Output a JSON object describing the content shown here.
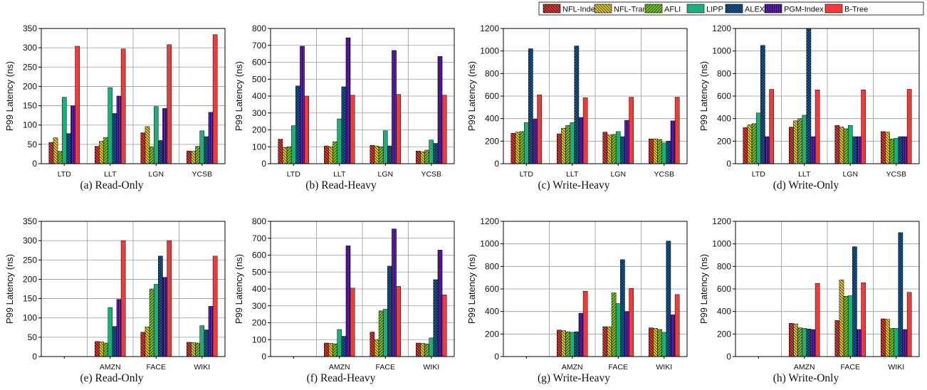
{
  "legend": [
    "NFL-Index",
    "NFL-Trans",
    "AFLI",
    "LIPP",
    "ALEX",
    "PGM-Index",
    "B-Tree"
  ],
  "series_style": [
    {
      "name": "NFL-Index",
      "color": "#e8332f",
      "pattern": "diag-back"
    },
    {
      "name": "NFL-Trans",
      "color": "#e6d21a",
      "pattern": "diag-back"
    },
    {
      "name": "AFLI",
      "color": "#7cc23a",
      "pattern": "diag-fwd"
    },
    {
      "name": "LIPP",
      "color": "#1fae7a",
      "pattern": "solid"
    },
    {
      "name": "ALEX",
      "color": "#1a5f9e",
      "pattern": "cross"
    },
    {
      "name": "PGM-Index",
      "color": "#5b1ea8",
      "pattern": "vertical"
    },
    {
      "name": "B-Tree",
      "color": "#ee3b3b",
      "pattern": "solid"
    }
  ],
  "chart_data": [
    {
      "type": "bar",
      "caption": "(a)  Read-Only",
      "ylabel": "P99 Latency (ns)",
      "ylim": [
        0,
        350
      ],
      "yticks": [
        0,
        50,
        100,
        150,
        200,
        250,
        300,
        350
      ],
      "categories": [
        "LTD",
        "LLT",
        "LGN",
        "YCSB"
      ],
      "grid": true,
      "series": [
        {
          "name": "NFL-Index",
          "values": [
            55,
            45,
            80,
            33
          ]
        },
        {
          "name": "NFL-Trans",
          "values": [
            67,
            58,
            96,
            32
          ]
        },
        {
          "name": "AFLI",
          "values": [
            32,
            68,
            44,
            45
          ]
        },
        {
          "name": "LIPP",
          "values": [
            172,
            197,
            148,
            85
          ]
        },
        {
          "name": "ALEX",
          "values": [
            78,
            130,
            60,
            70
          ]
        },
        {
          "name": "PGM-Index",
          "values": [
            150,
            175,
            143,
            133
          ]
        },
        {
          "name": "B-Tree",
          "values": [
            304,
            297,
            308,
            334
          ]
        }
      ]
    },
    {
      "type": "bar",
      "caption": "(b)  Read-Heavy",
      "ylabel": "P99 Latency (ns)",
      "ylim": [
        0,
        800
      ],
      "yticks": [
        0,
        100,
        200,
        300,
        400,
        500,
        600,
        700,
        800
      ],
      "categories": [
        "LTD",
        "LLT",
        "LGN",
        "YCSB"
      ],
      "grid": true,
      "series": [
        {
          "name": "NFL-Index",
          "values": [
            145,
            105,
            108,
            75
          ]
        },
        {
          "name": "NFL-Trans",
          "values": [
            95,
            100,
            105,
            70
          ]
        },
        {
          "name": "AFLI",
          "values": [
            100,
            130,
            100,
            80
          ]
        },
        {
          "name": "LIPP",
          "values": [
            225,
            265,
            195,
            140
          ]
        },
        {
          "name": "ALEX",
          "values": [
            460,
            455,
            105,
            120
          ]
        },
        {
          "name": "PGM-Index",
          "values": [
            695,
            745,
            670,
            635
          ]
        },
        {
          "name": "B-Tree",
          "values": [
            400,
            405,
            410,
            405
          ]
        }
      ]
    },
    {
      "type": "bar",
      "caption": "(c)  Write-Heavy",
      "ylabel": "P99 Latency (ns)",
      "ylim": [
        0,
        1200
      ],
      "yticks": [
        0,
        200,
        400,
        600,
        800,
        1000,
        1200
      ],
      "categories": [
        "LTD",
        "LLT",
        "LGN",
        "YCSB"
      ],
      "grid": true,
      "series": [
        {
          "name": "NFL-Index",
          "values": [
            270,
            265,
            280,
            220
          ]
        },
        {
          "name": "NFL-Trans",
          "values": [
            280,
            315,
            255,
            220
          ]
        },
        {
          "name": "AFLI",
          "values": [
            285,
            340,
            260,
            215
          ]
        },
        {
          "name": "LIPP",
          "values": [
            365,
            365,
            285,
            185
          ]
        },
        {
          "name": "ALEX",
          "values": [
            1020,
            1045,
            240,
            200
          ]
        },
        {
          "name": "PGM-Index",
          "values": [
            395,
            410,
            385,
            380
          ]
        },
        {
          "name": "B-Tree",
          "values": [
            610,
            585,
            590,
            590
          ]
        }
      ]
    },
    {
      "type": "bar",
      "caption": "(d)  Write-Only",
      "ylabel": "P99 Latency (ns)",
      "ylim": [
        0,
        1200
      ],
      "yticks": [
        0,
        200,
        400,
        600,
        800,
        1000,
        1200
      ],
      "categories": [
        "LTD",
        "LLT",
        "LGN",
        "YCSB"
      ],
      "grid": true,
      "series": [
        {
          "name": "NFL-Index",
          "values": [
            320,
            325,
            340,
            285
          ]
        },
        {
          "name": "NFL-Trans",
          "values": [
            345,
            380,
            325,
            280
          ]
        },
        {
          "name": "AFLI",
          "values": [
            355,
            400,
            310,
            220
          ]
        },
        {
          "name": "LIPP",
          "values": [
            450,
            430,
            340,
            225
          ]
        },
        {
          "name": "ALEX",
          "values": [
            1050,
            1200,
            240,
            240
          ]
        },
        {
          "name": "PGM-Index",
          "values": [
            240,
            240,
            240,
            240
          ]
        },
        {
          "name": "B-Tree",
          "values": [
            660,
            655,
            655,
            660
          ]
        }
      ]
    },
    {
      "type": "bar",
      "caption": "(e)  Read-Only",
      "ylabel": "P99 Latency (ns)",
      "ylim": [
        0,
        350
      ],
      "yticks": [
        0,
        50,
        100,
        150,
        200,
        250,
        300,
        350
      ],
      "categories": [
        "",
        "AMZN",
        "FACE",
        "WIKI"
      ],
      "grid": true,
      "series": [
        {
          "name": "NFL-Index",
          "values": [
            null,
            39,
            63,
            37
          ]
        },
        {
          "name": "NFL-Trans",
          "values": [
            null,
            38,
            77,
            36
          ]
        },
        {
          "name": "AFLI",
          "values": [
            null,
            35,
            175,
            35
          ]
        },
        {
          "name": "LIPP",
          "values": [
            null,
            127,
            187,
            80
          ]
        },
        {
          "name": "ALEX",
          "values": [
            null,
            78,
            260,
            69
          ]
        },
        {
          "name": "PGM-Index",
          "values": [
            null,
            148,
            205,
            130
          ]
        },
        {
          "name": "B-Tree",
          "values": [
            null,
            300,
            300,
            260
          ]
        }
      ]
    },
    {
      "type": "bar",
      "caption": "(f)  Read-Heavy",
      "ylabel": "P99 Latency (ns)",
      "ylim": [
        0,
        800
      ],
      "yticks": [
        0,
        100,
        200,
        300,
        400,
        500,
        600,
        700,
        800
      ],
      "categories": [
        "",
        "AMZN",
        "FACE",
        "WIKI"
      ],
      "grid": true,
      "series": [
        {
          "name": "NFL-Index",
          "values": [
            null,
            80,
            145,
            80
          ]
        },
        {
          "name": "NFL-Trans",
          "values": [
            null,
            78,
            100,
            78
          ]
        },
        {
          "name": "AFLI",
          "values": [
            null,
            75,
            270,
            75
          ]
        },
        {
          "name": "LIPP",
          "values": [
            null,
            160,
            280,
            110
          ]
        },
        {
          "name": "ALEX",
          "values": [
            null,
            120,
            535,
            455
          ]
        },
        {
          "name": "PGM-Index",
          "values": [
            null,
            655,
            755,
            630
          ]
        },
        {
          "name": "B-Tree",
          "values": [
            null,
            405,
            415,
            365
          ]
        }
      ]
    },
    {
      "type": "bar",
      "caption": "(g)  Write-Heavy",
      "ylabel": "P99 Latency (ns)",
      "ylim": [
        0,
        1200
      ],
      "yticks": [
        0,
        200,
        400,
        600,
        800,
        1000,
        1200
      ],
      "categories": [
        "",
        "AMZN",
        "FACE",
        "WIKI"
      ],
      "grid": true,
      "series": [
        {
          "name": "NFL-Index",
          "values": [
            null,
            235,
            265,
            255
          ]
        },
        {
          "name": "NFL-Trans",
          "values": [
            null,
            230,
            265,
            250
          ]
        },
        {
          "name": "AFLI",
          "values": [
            null,
            220,
            565,
            240
          ]
        },
        {
          "name": "LIPP",
          "values": [
            null,
            215,
            470,
            215
          ]
        },
        {
          "name": "ALEX",
          "values": [
            null,
            220,
            860,
            1025
          ]
        },
        {
          "name": "PGM-Index",
          "values": [
            null,
            385,
            400,
            370
          ]
        },
        {
          "name": "B-Tree",
          "values": [
            null,
            580,
            605,
            550
          ]
        }
      ]
    },
    {
      "type": "bar",
      "caption": "(h)  Write-Only",
      "ylabel": "P99 Latency (ns)",
      "ylim": [
        0,
        1200
      ],
      "yticks": [
        0,
        200,
        400,
        600,
        800,
        1000,
        1200
      ],
      "categories": [
        "",
        "AMZN",
        "FACE",
        "WIKI"
      ],
      "grid": true,
      "series": [
        {
          "name": "NFL-Index",
          "values": [
            null,
            295,
            320,
            335
          ]
        },
        {
          "name": "NFL-Trans",
          "values": [
            null,
            290,
            680,
            330
          ]
        },
        {
          "name": "AFLI",
          "values": [
            null,
            255,
            535,
            250
          ]
        },
        {
          "name": "LIPP",
          "values": [
            null,
            250,
            540,
            250
          ]
        },
        {
          "name": "ALEX",
          "values": [
            null,
            245,
            975,
            1100
          ]
        },
        {
          "name": "PGM-Index",
          "values": [
            null,
            240,
            240,
            240
          ]
        },
        {
          "name": "B-Tree",
          "values": [
            null,
            650,
            655,
            570
          ]
        }
      ]
    }
  ]
}
